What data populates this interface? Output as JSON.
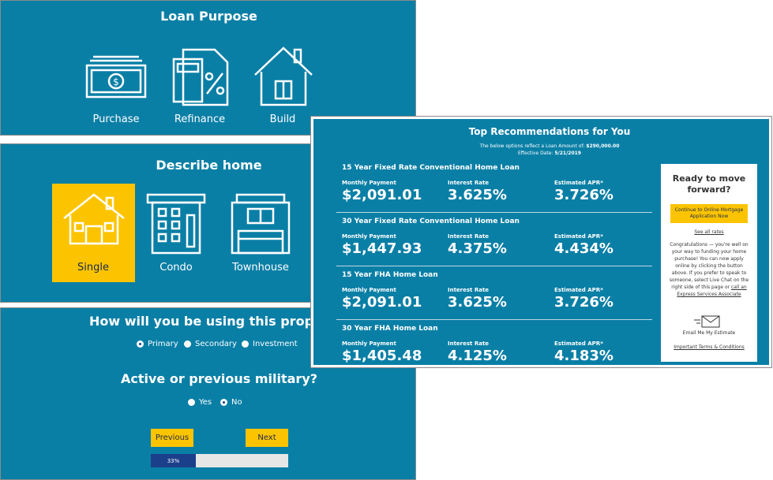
{
  "loan_purpose": {
    "title": "Loan Purpose",
    "options": [
      "Purchase",
      "Refinance",
      "Build"
    ]
  },
  "describe_home": {
    "title": "Describe home",
    "options": [
      "Single",
      "Condo",
      "Townhouse"
    ],
    "selected": "Single"
  },
  "usage": {
    "title": "How will you be using this prop",
    "options": [
      "Primary",
      "Secondary",
      "Investment"
    ],
    "selected": "Primary"
  },
  "military": {
    "title": "Active or previous military?",
    "options": [
      "Yes",
      "No"
    ],
    "selected": "No"
  },
  "navigation": {
    "previous": "Previous",
    "next": "Next",
    "progress": "33%"
  },
  "recommendations": {
    "title": "Top Recommendations for You",
    "amount_label": "The below options reflect a Loan Amount of:",
    "amount": "$290,000.00",
    "date_label": "Effective Date:",
    "date": "5/21/2019",
    "column_labels": [
      "Monthly Payment",
      "Interest Rate",
      "Estimated APR*"
    ],
    "loans": [
      {
        "name": "15 Year Fixed Rate Conventional Home Loan",
        "values": [
          "$2,091.01",
          "3.625%",
          "3.726%"
        ]
      },
      {
        "name": "30 Year Fixed Rate Conventional Home Loan",
        "values": [
          "$1,447.93",
          "4.375%",
          "4.434%"
        ]
      },
      {
        "name": "15 Year FHA Home Loan",
        "values": [
          "$2,091.01",
          "3.625%",
          "3.726%"
        ]
      },
      {
        "name": "30 Year FHA Home Loan",
        "values": [
          "$1,405.48",
          "4.125%",
          "4.183%"
        ]
      }
    ],
    "sidebar": {
      "heading": "Ready to move forward?",
      "button": "Continue to Online Mortgage Application Now",
      "see_all": "See all rates",
      "body": "Congratulations — you're well on your way to funding your home purchase! You can now apply online by clicking the button above. If you prefer to speak to someone, select Live Chat on the right side of this page or",
      "link": "call an Express Services Associate",
      "email": "Email Me My Estimate",
      "terms": "Important Terms & Conditions"
    }
  }
}
